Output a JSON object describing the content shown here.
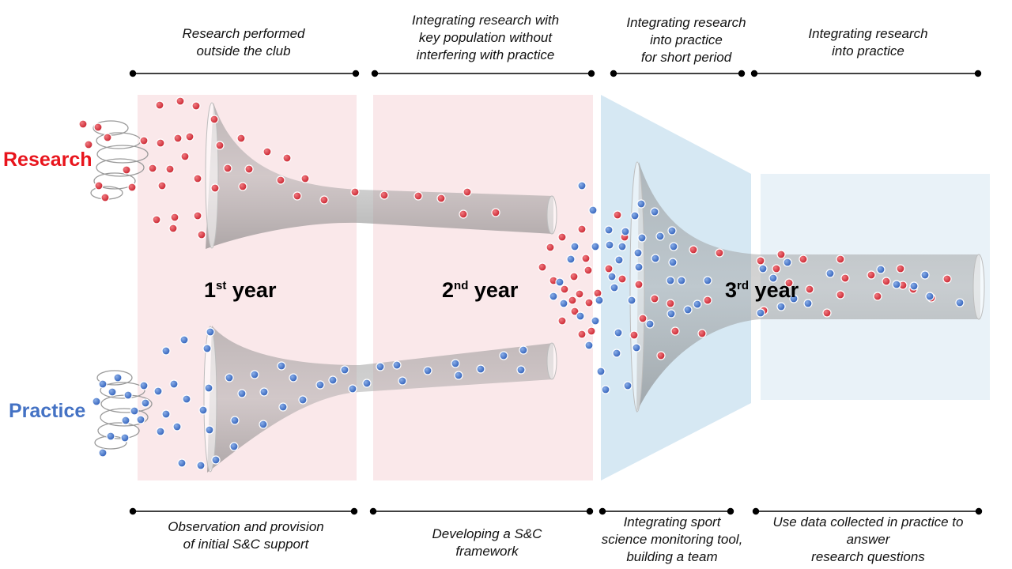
{
  "top_captions": [
    "Research performed\noutside the club",
    "Integrating research with\nkey population without\ninterfering with practice",
    "Integrating research\ninto practice\nfor short period",
    "Integrating research\ninto practice"
  ],
  "bottom_captions": [
    "Observation and provision\nof initial S&C support",
    "Developing a S&C\nframework",
    "Integrating sport\nscience monitoring tool,\nbuilding a team",
    "Use data collected in practice to\nanswer\nresearch questions"
  ],
  "left_labels": {
    "research": "Research",
    "practice": "Practice"
  },
  "years": [
    {
      "num": "1",
      "suffix": "st",
      "word": "year"
    },
    {
      "num": "2",
      "suffix": "nd",
      "word": "year"
    },
    {
      "num": "3",
      "suffix": "rd",
      "word": "year"
    }
  ],
  "colors": {
    "research": "#d9343f",
    "practice": "#3b6cc4",
    "research_label": "#e8141c",
    "practice_label": "#4472c4",
    "pink_panel": "#fae8ea",
    "blue_panel": "#d6e8f3",
    "light_blue_panel": "#e9f2f8",
    "funnel": "#9e9e9e"
  }
}
